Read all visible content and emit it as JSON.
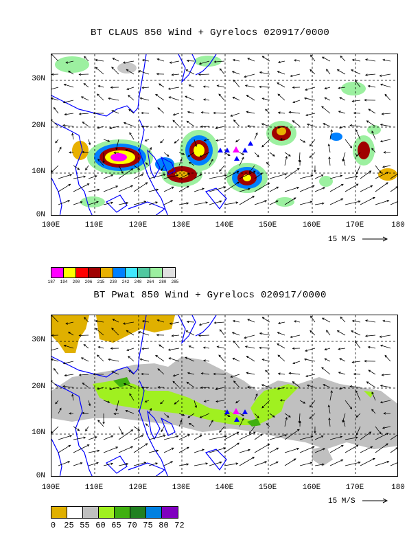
{
  "top": {
    "title": "BT CLAUS 850 Wind + Gyrelocs 020917/0000",
    "colorbar": {
      "colors": [
        "#ff00ff",
        "#ffff00",
        "#ff0000",
        "#a00000",
        "#e8b000",
        "#0080ff",
        "#40e8ff",
        "#50c8a0",
        "#9cf0a0",
        "#e0e0e0"
      ],
      "labels": [
        "187",
        "194",
        "200",
        "206",
        "215",
        "230",
        "242",
        "248",
        "264",
        "280",
        "285"
      ]
    }
  },
  "bottom": {
    "title": "BT Pwat 850 Wind + Gyrelocs 020917/0000",
    "colorbar": {
      "colors": [
        "#e0b000",
        "#ffffff",
        "#c0c0c0",
        "#a0f020",
        "#40b010",
        "#208020",
        "#0080e0",
        "#8000c0"
      ],
      "labels": [
        "0",
        "25",
        "55",
        "60",
        "65",
        "70",
        "75",
        "80",
        "72"
      ]
    }
  },
  "axes": {
    "y_ticks": [
      "30N",
      "20N",
      "10N",
      "0N"
    ],
    "x_ticks": [
      "100E",
      "110E",
      "120E",
      "130E",
      "140E",
      "150E",
      "160E",
      "170E",
      "180"
    ],
    "reference_vector": "15 M/S"
  },
  "colors": {
    "coast": "#0000ff",
    "gyre_triangle": "#0000ff",
    "center_triangle": "#ff00ff"
  }
}
